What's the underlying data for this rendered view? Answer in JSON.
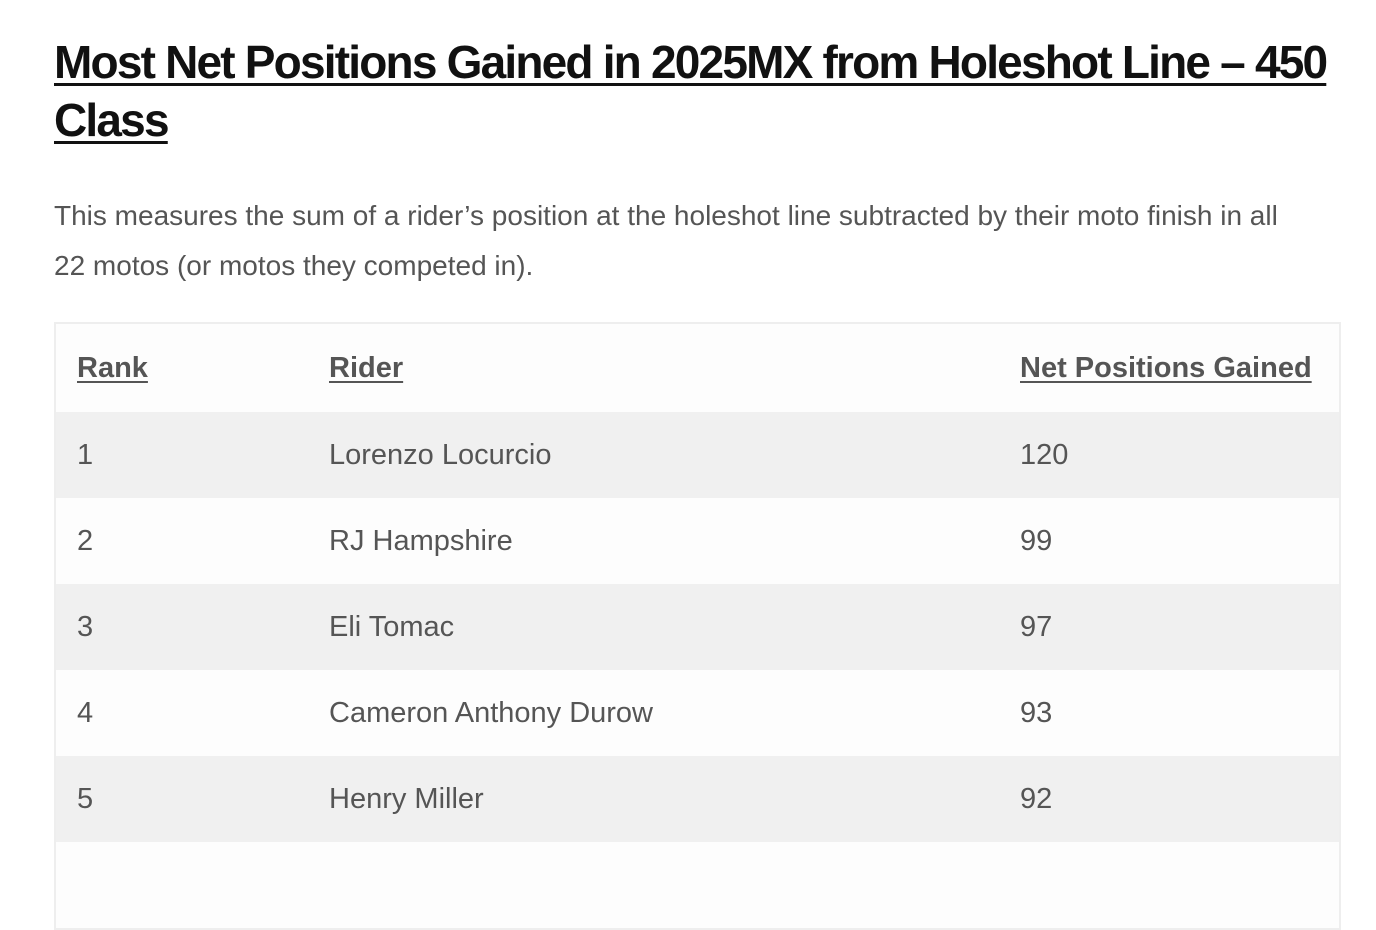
{
  "title": "Most Net Positions Gained in 2025MX from Holeshot Line – 450 Class",
  "intro": "This measures the sum of a rider’s position at the holeshot line subtracted by their moto finish in all 22 motos (or motos they competed in).",
  "table": {
    "headers": [
      "Rank",
      "Rider",
      "Net Positions Gained"
    ],
    "rows": [
      [
        1,
        "Lorenzo Locurcio",
        120
      ],
      [
        2,
        "RJ Hampshire",
        99
      ],
      [
        3,
        "Eli Tomac",
        97
      ],
      [
        4,
        "Cameron Anthony Durow",
        93
      ],
      [
        5,
        "Henry Miller",
        92
      ]
    ]
  }
}
